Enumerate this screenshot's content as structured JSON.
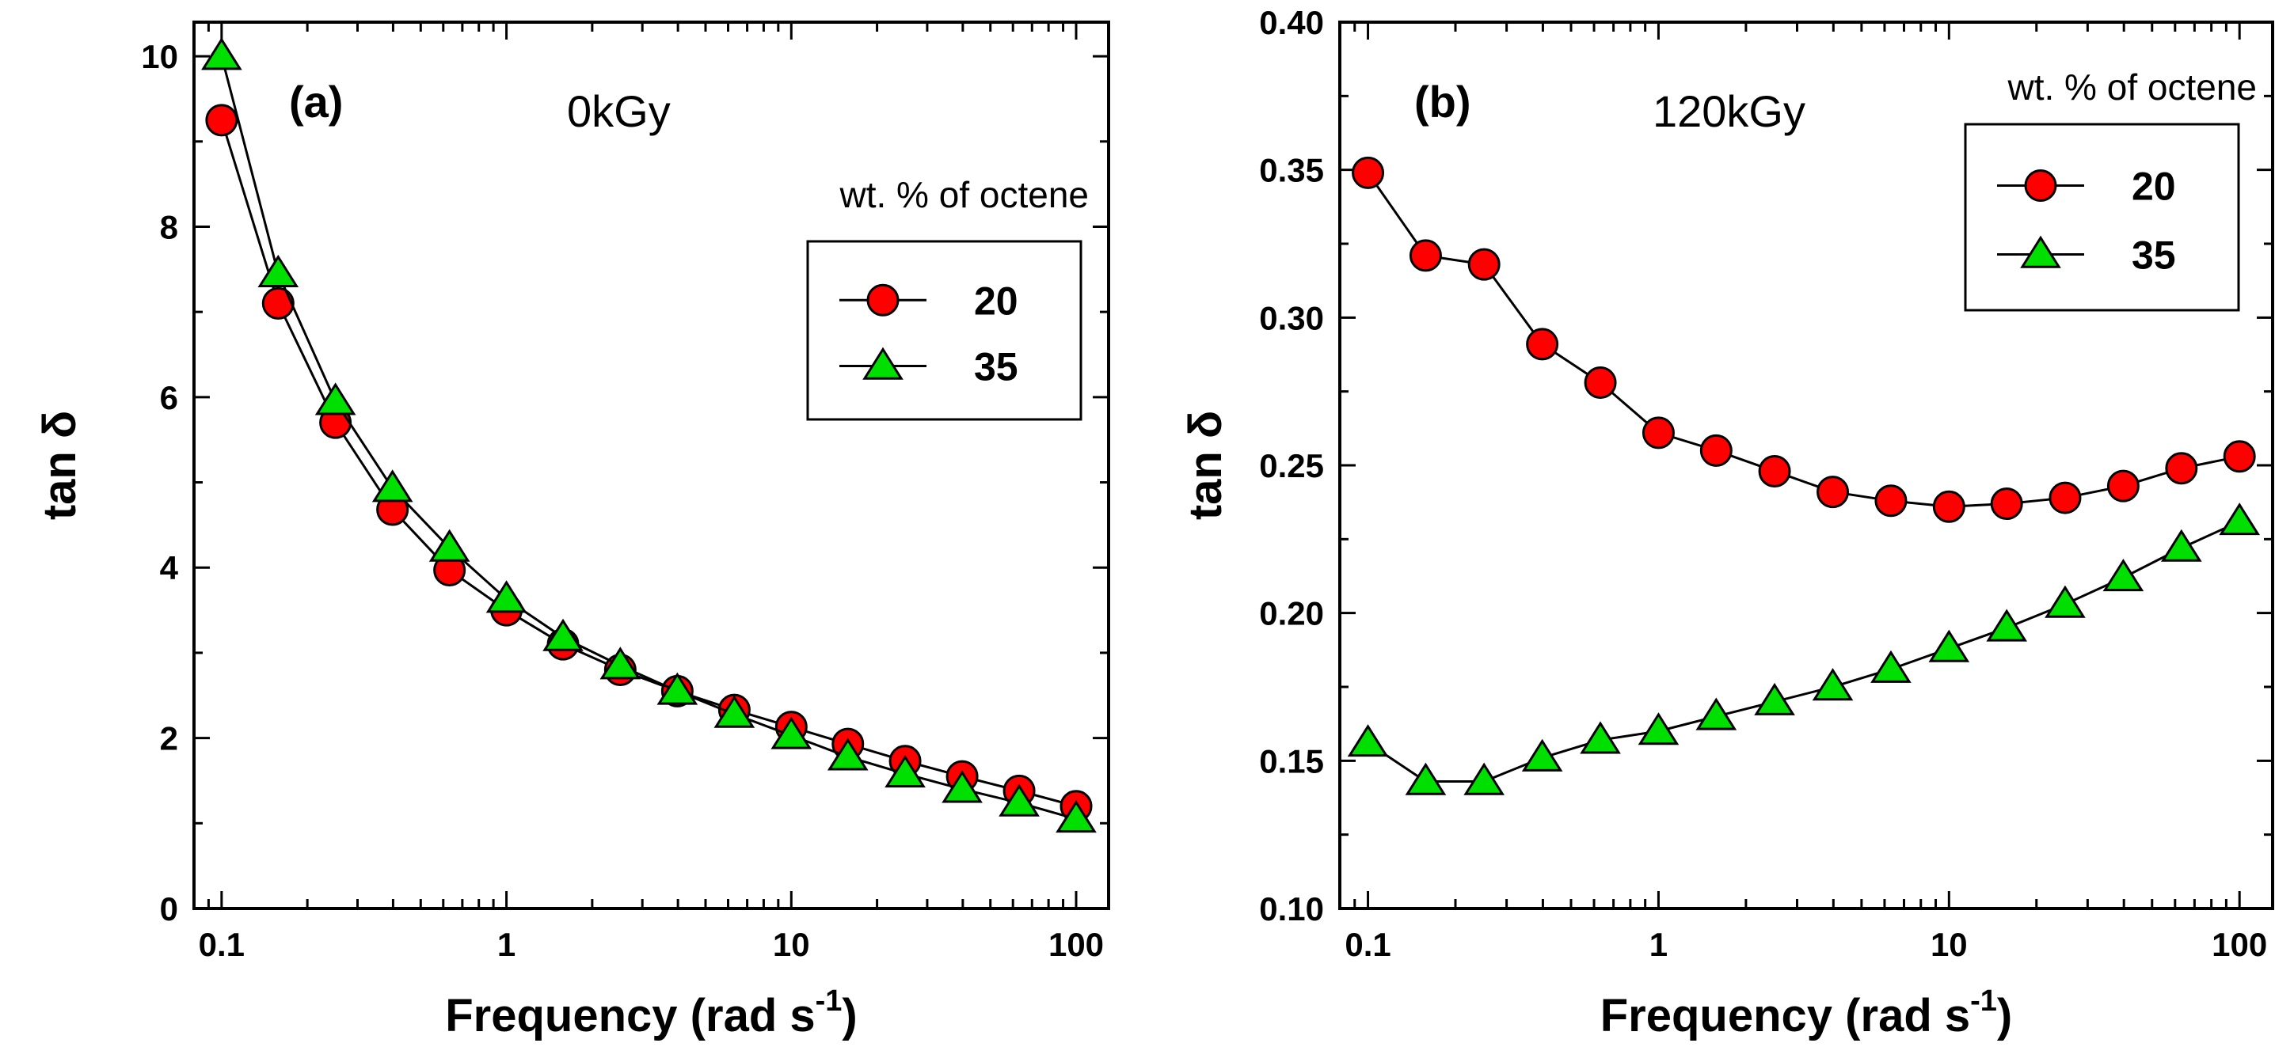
{
  "chart_data": [
    {
      "type": "line",
      "panel_label": "(a)",
      "annotation": "0kGy",
      "xlabel": "Frequency (rad s",
      "xlabel_superscript": "-1",
      "xlabel_suffix": ")",
      "ylabel": "tan δ",
      "xscale": "log",
      "xlim": [
        0.08,
        130
      ],
      "ylim": [
        0,
        10.4
      ],
      "xticks": [
        0.1,
        1,
        10,
        100
      ],
      "xtick_labels": [
        "0.1",
        "1",
        "10",
        "100"
      ],
      "yticks": [
        0,
        2,
        4,
        6,
        8,
        10
      ],
      "ytick_labels": [
        "0",
        "2",
        "4",
        "6",
        "8",
        "10"
      ],
      "legend_title": "wt. % of octene",
      "legend_placement": "right",
      "x": [
        0.1,
        0.158,
        0.251,
        0.398,
        0.631,
        1,
        1.58,
        2.51,
        3.98,
        6.31,
        10,
        15.8,
        25.1,
        39.8,
        63.1,
        100
      ],
      "series": [
        {
          "name": "20",
          "marker": "circle",
          "color": "#ff0000",
          "values": [
            9.25,
            7.1,
            5.7,
            4.68,
            3.97,
            3.5,
            3.1,
            2.8,
            2.55,
            2.33,
            2.13,
            1.93,
            1.73,
            1.55,
            1.38,
            1.2
          ]
        },
        {
          "name": "35",
          "marker": "triangle",
          "color": "#00e000",
          "values": [
            10.0,
            7.45,
            5.95,
            4.93,
            4.23,
            3.63,
            3.18,
            2.85,
            2.55,
            2.28,
            2.03,
            1.78,
            1.58,
            1.4,
            1.24,
            1.05
          ]
        }
      ]
    },
    {
      "type": "line",
      "panel_label": "(b)",
      "annotation": "120kGy",
      "xlabel": "Frequency (rad s",
      "xlabel_superscript": "-1",
      "xlabel_suffix": ")",
      "ylabel": "tan δ",
      "xscale": "log",
      "xlim": [
        0.08,
        130
      ],
      "ylim": [
        0.1,
        0.4
      ],
      "xticks": [
        0.1,
        1,
        10,
        100
      ],
      "xtick_labels": [
        "0.1",
        "1",
        "10",
        "100"
      ],
      "yticks": [
        0.1,
        0.15,
        0.2,
        0.25,
        0.3,
        0.35,
        0.4
      ],
      "ytick_labels": [
        "0.10",
        "0.15",
        "0.20",
        "0.25",
        "0.30",
        "0.35",
        "0.40"
      ],
      "legend_title": "wt. % of octene",
      "legend_placement": "top-right",
      "x": [
        0.1,
        0.158,
        0.251,
        0.398,
        0.631,
        1,
        1.58,
        2.51,
        3.98,
        6.31,
        10,
        15.8,
        25.1,
        39.8,
        63.1,
        100
      ],
      "series": [
        {
          "name": "20",
          "marker": "circle",
          "color": "#ff0000",
          "values": [
            0.349,
            0.321,
            0.318,
            0.291,
            0.278,
            0.261,
            0.255,
            0.248,
            0.241,
            0.238,
            0.236,
            0.237,
            0.239,
            0.243,
            0.249,
            0.253
          ]
        },
        {
          "name": "35",
          "marker": "triangle",
          "color": "#00e000",
          "values": [
            0.156,
            0.143,
            0.143,
            0.151,
            0.157,
            0.16,
            0.165,
            0.17,
            0.175,
            0.181,
            0.188,
            0.195,
            0.203,
            0.212,
            0.222,
            0.231
          ]
        }
      ]
    }
  ]
}
